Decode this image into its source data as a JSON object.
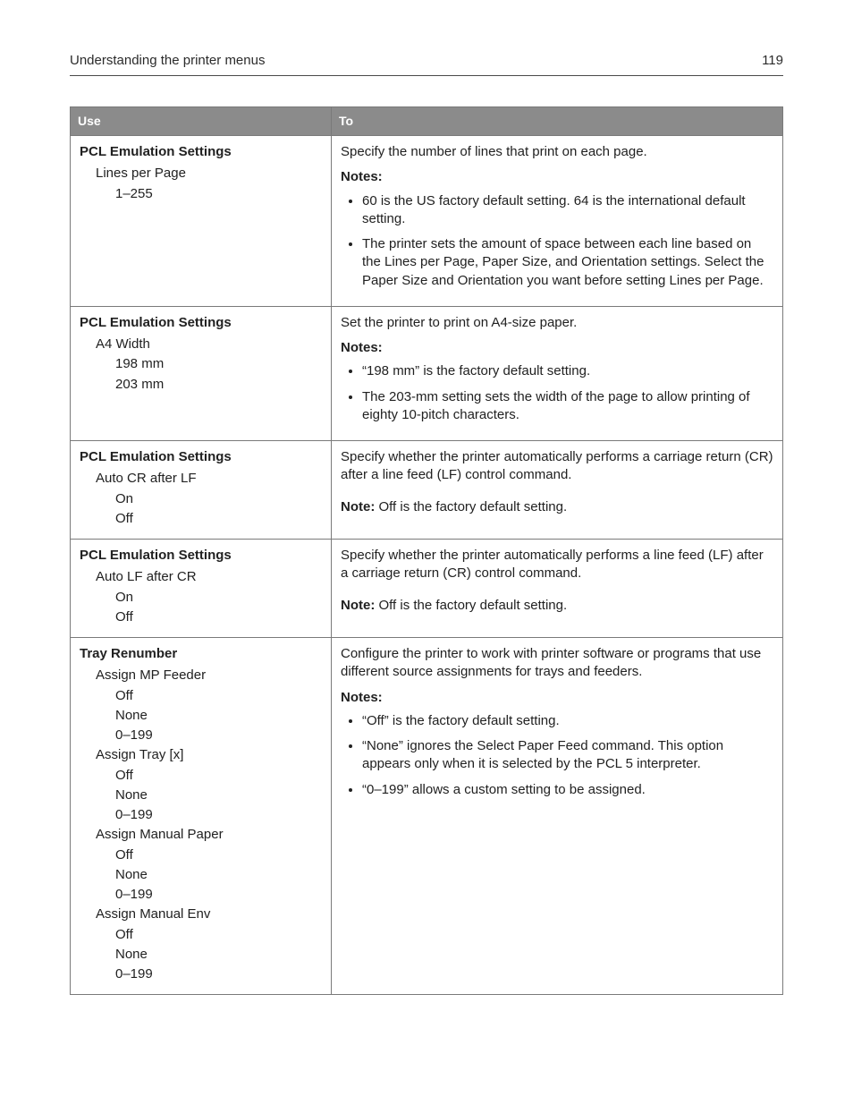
{
  "header": {
    "title": "Understanding the printer menus",
    "page_number": "119"
  },
  "table": {
    "columns": {
      "use": "Use",
      "to": "To"
    },
    "rows": [
      {
        "use": {
          "root": "PCL Emulation Settings",
          "lines": [
            {
              "text": "Lines per Page",
              "level": 1
            },
            {
              "text": "1–255",
              "level": 2
            }
          ]
        },
        "to": {
          "desc": "Specify the number of lines that print on each page.",
          "notes_label": "Notes:",
          "bullets": [
            "60 is the US factory default setting. 64 is the international default setting.",
            "The printer sets the amount of space between each line based on the Lines per Page, Paper Size, and Orientation settings. Select the Paper Size and Orientation you want before setting Lines per Page."
          ]
        }
      },
      {
        "use": {
          "root": "PCL Emulation Settings",
          "lines": [
            {
              "text": "A4 Width",
              "level": 1
            },
            {
              "text": "198 mm",
              "level": 2
            },
            {
              "text": "203 mm",
              "level": 2
            }
          ]
        },
        "to": {
          "desc": "Set the printer to print on A4‑size paper.",
          "notes_label": "Notes:",
          "bullets": [
            "“198 mm” is the factory default setting.",
            "The 203‑mm setting sets the width of the page to allow printing of eighty 10‑pitch characters."
          ]
        }
      },
      {
        "use": {
          "root": "PCL Emulation Settings",
          "lines": [
            {
              "text": "Auto CR after LF",
              "level": 1
            },
            {
              "text": "On",
              "level": 2
            },
            {
              "text": "Off",
              "level": 2
            }
          ]
        },
        "to": {
          "desc": "Specify whether the printer automatically performs a carriage return (CR) after a line feed (LF) control command.",
          "note_inline_label": "Note:",
          "note_inline_text": " Off is the factory default setting."
        }
      },
      {
        "use": {
          "root": "PCL Emulation Settings",
          "lines": [
            {
              "text": "Auto LF after CR",
              "level": 1
            },
            {
              "text": "On",
              "level": 2
            },
            {
              "text": "Off",
              "level": 2
            }
          ]
        },
        "to": {
          "desc": "Specify whether the printer automatically performs a line feed (LF) after a carriage return (CR) control command.",
          "note_inline_label": "Note:",
          "note_inline_text": " Off is the factory default setting."
        }
      },
      {
        "use": {
          "root": "Tray Renumber",
          "lines": [
            {
              "text": "Assign MP Feeder",
              "level": 1
            },
            {
              "text": "Off",
              "level": 2
            },
            {
              "text": "None",
              "level": 2
            },
            {
              "text": "0–199",
              "level": 2
            },
            {
              "text": "Assign Tray [x]",
              "level": 1
            },
            {
              "text": "Off",
              "level": 2
            },
            {
              "text": "None",
              "level": 2
            },
            {
              "text": "0–199",
              "level": 2
            },
            {
              "text": "Assign Manual Paper",
              "level": 1
            },
            {
              "text": "Off",
              "level": 2
            },
            {
              "text": "None",
              "level": 2
            },
            {
              "text": "0–199",
              "level": 2
            },
            {
              "text": "Assign Manual Env",
              "level": 1
            },
            {
              "text": "Off",
              "level": 2
            },
            {
              "text": "None",
              "level": 2
            },
            {
              "text": "0–199",
              "level": 2
            }
          ]
        },
        "to": {
          "desc": "Configure the printer to work with printer software or programs that use different source assignments for trays and feeders.",
          "notes_label": "Notes:",
          "bullets": [
            "“Off” is the factory default setting.",
            "“None” ignores the Select Paper Feed command. This option appears only when it is selected by the PCL 5 interpreter.",
            "“0–199” allows a custom setting to be assigned."
          ]
        }
      }
    ]
  }
}
